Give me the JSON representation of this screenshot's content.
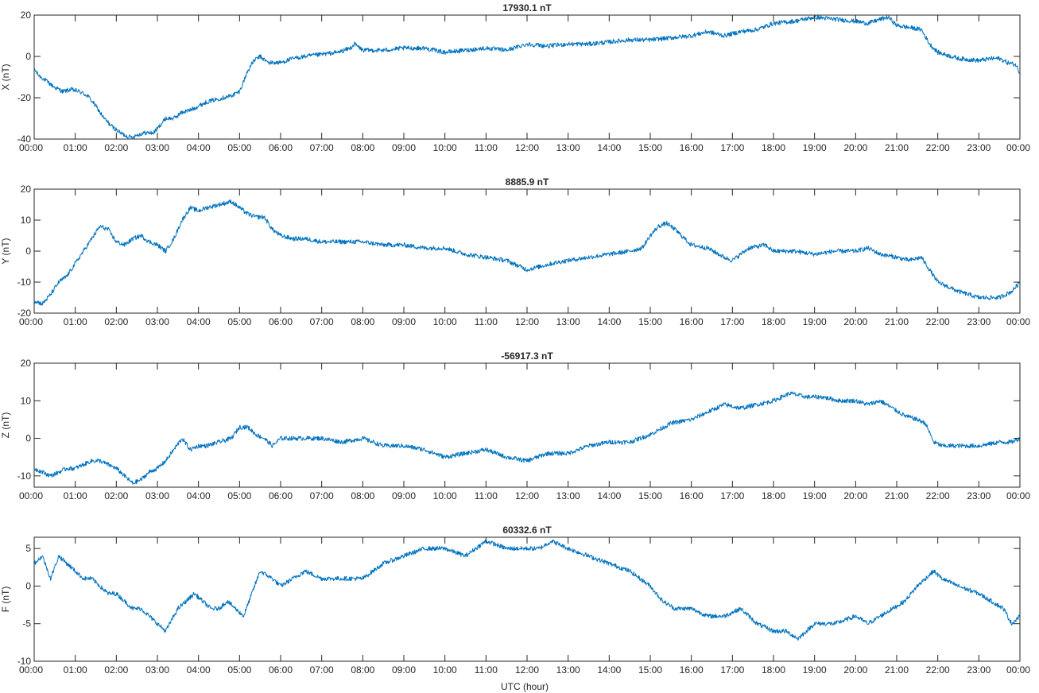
{
  "figure": {
    "xlabel": "UTC (hour)",
    "series_color": "#0072bd",
    "x_ticks": [
      "00:00",
      "01:00",
      "02:00",
      "03:00",
      "04:00",
      "05:00",
      "06:00",
      "07:00",
      "08:00",
      "09:00",
      "10:00",
      "11:00",
      "12:00",
      "13:00",
      "14:00",
      "15:00",
      "16:00",
      "17:00",
      "18:00",
      "19:00",
      "20:00",
      "21:00",
      "22:00",
      "23:00",
      "00:00"
    ]
  },
  "chart_data": [
    {
      "type": "line",
      "title": "17930.1 nT",
      "ylabel": "X (nT)",
      "xlabel": "",
      "xlim": [
        0,
        24
      ],
      "ylim": [
        -40,
        20
      ],
      "y_ticks": [
        20,
        0,
        -20,
        -40
      ],
      "grid": false,
      "x": [
        0,
        0.1,
        0.3,
        0.5,
        0.7,
        0.9,
        1.1,
        1.3,
        1.5,
        1.7,
        1.9,
        2.1,
        2.3,
        2.4,
        2.5,
        2.7,
        2.9,
        3.0,
        3.2,
        3.4,
        3.6,
        3.8,
        4.0,
        4.2,
        4.4,
        4.6,
        4.8,
        5.0,
        5.1,
        5.2,
        5.35,
        5.5,
        5.7,
        6.0,
        6.3,
        6.6,
        7.0,
        7.4,
        7.7,
        7.8,
        8.0,
        8.5,
        9.0,
        9.5,
        10.0,
        10.5,
        11.0,
        11.5,
        12.0,
        12.5,
        13.0,
        13.5,
        14.0,
        14.5,
        15.0,
        15.5,
        16.0,
        16.4,
        16.8,
        17.2,
        17.6,
        18.0,
        18.5,
        19.0,
        19.5,
        20.0,
        20.3,
        20.6,
        20.8,
        21.0,
        21.3,
        21.6,
        21.8,
        22.0,
        22.5,
        23.0,
        23.3,
        23.5,
        23.7,
        23.9,
        24.0
      ],
      "values": [
        -6,
        -9,
        -12,
        -15,
        -17,
        -16,
        -17,
        -19,
        -24,
        -30,
        -34,
        -37,
        -39,
        -39,
        -38,
        -37,
        -37,
        -35,
        -30,
        -30,
        -27,
        -26,
        -24,
        -22,
        -21,
        -20,
        -19,
        -17,
        -12,
        -7,
        -2,
        0,
        -3,
        -3,
        -1,
        0,
        1,
        2,
        4,
        6,
        3,
        3,
        4,
        4,
        2,
        3,
        4,
        3,
        6,
        5,
        6,
        6,
        7,
        8,
        8,
        9,
        10,
        12,
        10,
        12,
        13,
        16,
        17,
        19,
        18,
        17,
        16,
        18,
        19,
        15,
        14,
        13,
        6,
        2,
        -1,
        -2,
        -1,
        -1,
        -3,
        -4,
        -8
      ]
    },
    {
      "type": "line",
      "title": "8885.9 nT",
      "ylabel": "Y (nT)",
      "xlabel": "",
      "xlim": [
        0,
        24
      ],
      "ylim": [
        -20,
        20
      ],
      "y_ticks": [
        20,
        10,
        0,
        -10,
        -20
      ],
      "grid": false,
      "x": [
        0,
        0.2,
        0.4,
        0.6,
        0.8,
        1.0,
        1.2,
        1.4,
        1.6,
        1.8,
        2.0,
        2.2,
        2.4,
        2.6,
        2.8,
        3.0,
        3.2,
        3.4,
        3.6,
        3.8,
        4.0,
        4.2,
        4.5,
        4.8,
        5.0,
        5.2,
        5.4,
        5.6,
        5.8,
        6.0,
        6.3,
        6.6,
        7.0,
        7.5,
        8.0,
        8.5,
        9.0,
        9.5,
        10.0,
        10.5,
        11.0,
        11.5,
        12.0,
        12.3,
        12.6,
        13.0,
        13.5,
        14.0,
        14.5,
        14.8,
        15.0,
        15.2,
        15.4,
        15.6,
        16.0,
        16.4,
        16.8,
        17.0,
        17.4,
        17.8,
        18.0,
        18.5,
        19.0,
        19.5,
        20.0,
        20.3,
        20.6,
        21.0,
        21.3,
        21.6,
        21.8,
        22.0,
        22.5,
        23.0,
        23.5,
        23.8,
        24.0
      ],
      "values": [
        -16,
        -17,
        -14,
        -10,
        -8,
        -4,
        0,
        4,
        8,
        7,
        3,
        2,
        4,
        5,
        3,
        2,
        0,
        4,
        10,
        14,
        13,
        14,
        15,
        16,
        14,
        12,
        11,
        11,
        7,
        5,
        4,
        4,
        3,
        3,
        3,
        2,
        2,
        1,
        1,
        -1,
        -2,
        -3,
        -6,
        -5,
        -4,
        -3,
        -2,
        -1,
        0,
        1,
        5,
        8,
        9,
        7,
        2,
        1,
        -2,
        -3,
        1,
        2,
        0,
        0,
        -1,
        0,
        0,
        1,
        -1,
        -2,
        -3,
        -2,
        -6,
        -10,
        -13,
        -15,
        -15,
        -13,
        -10
      ]
    },
    {
      "type": "line",
      "title": "-56917.3 nT",
      "ylabel": "Z (nT)",
      "xlabel": "",
      "xlim": [
        0,
        24
      ],
      "ylim": [
        -13,
        20
      ],
      "y_ticks": [
        20,
        10,
        0,
        -10
      ],
      "grid": false,
      "x": [
        0,
        0.2,
        0.4,
        0.6,
        0.8,
        1.0,
        1.2,
        1.4,
        1.6,
        1.8,
        2.0,
        2.2,
        2.4,
        2.6,
        2.8,
        3.0,
        3.2,
        3.4,
        3.6,
        3.8,
        4.0,
        4.2,
        4.5,
        4.8,
        5.0,
        5.2,
        5.4,
        5.6,
        5.8,
        6.0,
        6.5,
        7.0,
        7.5,
        8.0,
        8.5,
        9.0,
        9.5,
        10.0,
        10.5,
        11.0,
        11.5,
        12.0,
        12.5,
        13.0,
        13.5,
        14.0,
        14.5,
        15.0,
        15.5,
        16.0,
        16.4,
        16.8,
        17.2,
        17.6,
        18.0,
        18.4,
        18.8,
        19.2,
        19.6,
        20.0,
        20.3,
        20.6,
        20.9,
        21.2,
        21.5,
        21.7,
        21.9,
        22.1,
        22.5,
        23.0,
        23.5,
        23.8,
        24.0
      ],
      "values": [
        -8,
        -9,
        -10,
        -9,
        -8,
        -8,
        -7,
        -6,
        -6,
        -7,
        -8,
        -10,
        -12,
        -11,
        -9,
        -8,
        -6,
        -3,
        0,
        -3,
        -2,
        -2,
        -1,
        0,
        3,
        3,
        1,
        0,
        -2,
        0,
        0,
        0,
        -1,
        0,
        -2,
        -2,
        -3,
        -5,
        -4,
        -3,
        -5,
        -6,
        -4,
        -4,
        -2,
        -1,
        -1,
        1,
        4,
        5,
        7,
        9,
        8,
        9,
        10,
        12,
        11,
        11,
        10,
        10,
        9,
        10,
        8,
        6,
        5,
        4,
        -1,
        -2,
        -2,
        -2,
        -1,
        -1,
        0
      ]
    },
    {
      "type": "line",
      "title": "60332.6 nT",
      "ylabel": "F (nT)",
      "xlabel": "UTC (hour)",
      "xlim": [
        0,
        24
      ],
      "ylim": [
        -10,
        6.5
      ],
      "y_ticks": [
        5,
        0,
        -5,
        -10
      ],
      "grid": false,
      "x": [
        0,
        0.2,
        0.4,
        0.6,
        0.8,
        1.0,
        1.2,
        1.4,
        1.6,
        1.8,
        2.0,
        2.2,
        2.4,
        2.6,
        2.8,
        3.0,
        3.2,
        3.3,
        3.5,
        3.7,
        3.9,
        4.1,
        4.3,
        4.5,
        4.7,
        4.9,
        5.1,
        5.3,
        5.5,
        5.8,
        6.0,
        6.3,
        6.6,
        7.0,
        7.5,
        8.0,
        8.5,
        9.0,
        9.5,
        10.0,
        10.5,
        11.0,
        11.5,
        12.0,
        12.3,
        12.6,
        13.0,
        13.5,
        14.0,
        14.5,
        15.0,
        15.3,
        15.6,
        16.0,
        16.4,
        16.8,
        17.2,
        17.6,
        18.0,
        18.3,
        18.6,
        19.0,
        19.5,
        20.0,
        20.3,
        20.6,
        20.9,
        21.2,
        21.5,
        21.7,
        21.9,
        22.1,
        22.5,
        23.0,
        23.3,
        23.6,
        23.8,
        24.0
      ],
      "values": [
        3,
        4,
        1,
        4,
        3,
        2,
        1,
        1,
        0,
        -1,
        -1,
        -2,
        -3,
        -3,
        -4,
        -5,
        -6,
        -5,
        -3,
        -2,
        -1,
        -2,
        -3,
        -3,
        -2,
        -3,
        -4,
        -1,
        2,
        1,
        0,
        1,
        2,
        1,
        1,
        1,
        3,
        4,
        5,
        5,
        4,
        6,
        5,
        5,
        5,
        6,
        5,
        4,
        3,
        2,
        0,
        -2,
        -3,
        -3,
        -4,
        -4,
        -3,
        -5,
        -6,
        -6,
        -7,
        -5,
        -5,
        -4,
        -5,
        -4,
        -3,
        -2,
        0,
        1,
        2,
        1,
        0,
        -1,
        -2,
        -3,
        -5,
        -4
      ]
    }
  ]
}
